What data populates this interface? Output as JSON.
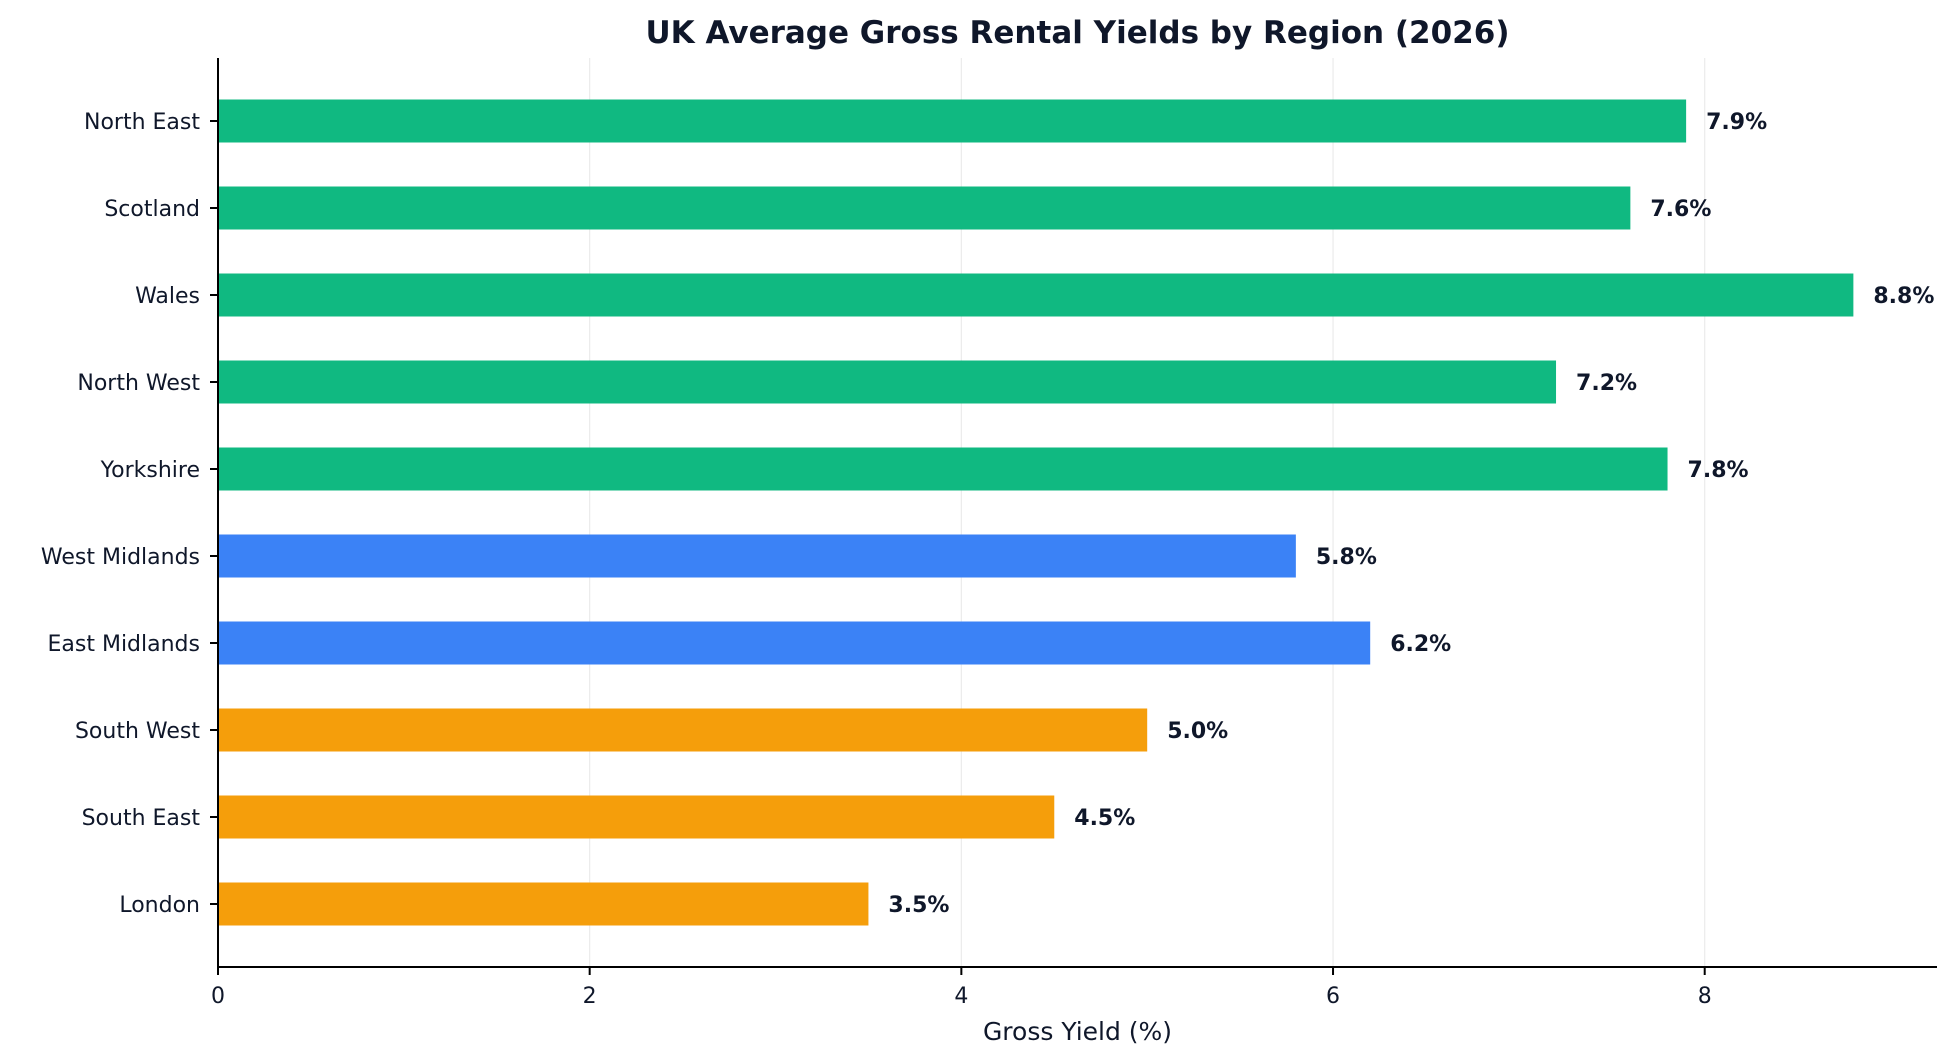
{
  "chart_data": {
    "type": "bar",
    "orientation": "horizontal",
    "title": "UK Average Gross Rental Yields by Region (2026)",
    "xlabel": "Gross Yield (%)",
    "ylabel": "",
    "xlim": [
      0,
      9.25
    ],
    "xticks": [
      0,
      2,
      4,
      6,
      8
    ],
    "grid": "vertical",
    "legend": "none",
    "categories": [
      "North East",
      "Scotland",
      "Wales",
      "North West",
      "Yorkshire",
      "West Midlands",
      "East Midlands",
      "South West",
      "South East",
      "London"
    ],
    "values": [
      7.9,
      7.6,
      8.8,
      7.2,
      7.8,
      5.8,
      6.2,
      5.0,
      4.5,
      3.5
    ],
    "value_labels": [
      "7.9%",
      "7.6%",
      "8.8%",
      "7.2%",
      "7.8%",
      "5.8%",
      "6.2%",
      "5.0%",
      "4.5%",
      "3.5%"
    ],
    "bar_colors": [
      "#10b981",
      "#10b981",
      "#10b981",
      "#10b981",
      "#10b981",
      "#3b82f6",
      "#3b82f6",
      "#f59e0b",
      "#f59e0b",
      "#f59e0b"
    ]
  },
  "colors": {
    "text": "#0f172a",
    "axis": "#000000",
    "grid": "#ebebeb",
    "background": "#ffffff"
  }
}
